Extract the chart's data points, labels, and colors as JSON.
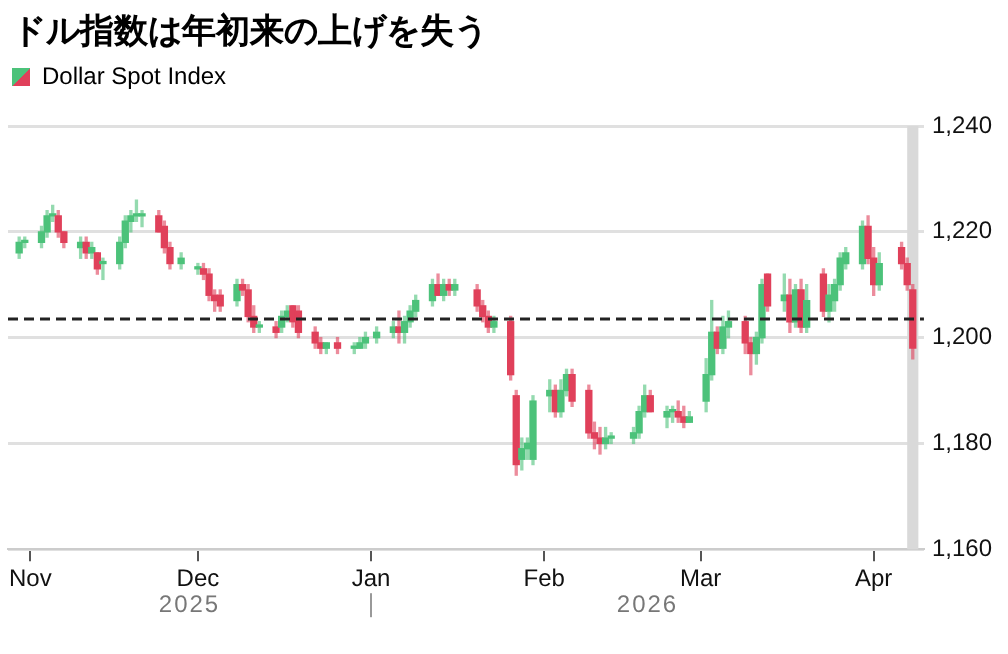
{
  "chart_data": {
    "type": "candlestick",
    "title": "ドル指数は年初来の上げを失う",
    "legend": "top left",
    "x": [
      "2025-10-30",
      "2025-10-31",
      "2025-11-03",
      "2025-11-04",
      "2025-11-05",
      "2025-11-06",
      "2025-11-07",
      "2025-11-10",
      "2025-11-11",
      "2025-11-12",
      "2025-11-13",
      "2025-11-14",
      "2025-11-17",
      "2025-11-18",
      "2025-11-19",
      "2025-11-20",
      "2025-11-21",
      "2025-11-24",
      "2025-11-25",
      "2025-11-26",
      "2025-11-28",
      "2025-12-01",
      "2025-12-02",
      "2025-12-03",
      "2025-12-04",
      "2025-12-05",
      "2025-12-08",
      "2025-12-09",
      "2025-12-10",
      "2025-12-11",
      "2025-12-12",
      "2025-12-15",
      "2025-12-16",
      "2025-12-17",
      "2025-12-18",
      "2025-12-19",
      "2025-12-22",
      "2025-12-23",
      "2025-12-24",
      "2025-12-26",
      "2025-12-29",
      "2025-12-30",
      "2025-12-31",
      "2026-01-02",
      "2026-01-05",
      "2026-01-06",
      "2026-01-07",
      "2026-01-08",
      "2026-01-09",
      "2026-01-12",
      "2026-01-13",
      "2026-01-14",
      "2026-01-15",
      "2026-01-16",
      "2026-01-20",
      "2026-01-21",
      "2026-01-22",
      "2026-01-23",
      "2026-01-26",
      "2026-01-27",
      "2026-01-28",
      "2026-01-29",
      "2026-01-30",
      "2026-02-02",
      "2026-02-03",
      "2026-02-04",
      "2026-02-05",
      "2026-02-06",
      "2026-02-09",
      "2026-02-10",
      "2026-02-11",
      "2026-02-12",
      "2026-02-13",
      "2026-02-17",
      "2026-02-18",
      "2026-02-19",
      "2026-02-20",
      "2026-02-23",
      "2026-02-24",
      "2026-02-25",
      "2026-02-26",
      "2026-02-27",
      "2026-03-02",
      "2026-03-03",
      "2026-03-04",
      "2026-03-05",
      "2026-03-06",
      "2026-03-09",
      "2026-03-10",
      "2026-03-11",
      "2026-03-12",
      "2026-03-13",
      "2026-03-16",
      "2026-03-17",
      "2026-03-18",
      "2026-03-19",
      "2026-03-20",
      "2026-03-23",
      "2026-03-24",
      "2026-03-25",
      "2026-03-26",
      "2026-03-27",
      "2026-03-30",
      "2026-03-31",
      "2026-04-01",
      "2026-04-02",
      "2026-04-06",
      "2026-04-07",
      "2026-04-08"
    ],
    "series": [
      {
        "name": "Dollar Spot Index",
        "ohlc": [
          [
            1216,
            1219,
            1215,
            1218
          ],
          [
            1218,
            1219,
            1217,
            1218
          ],
          [
            1218,
            1221,
            1217,
            1220
          ],
          [
            1220,
            1224,
            1219,
            1223
          ],
          [
            1223,
            1225,
            1222,
            1223
          ],
          [
            1223,
            1224,
            1219,
            1220
          ],
          [
            1220,
            1220,
            1217,
            1218
          ],
          [
            1217,
            1219,
            1215,
            1218
          ],
          [
            1218,
            1219,
            1215,
            1216
          ],
          [
            1216,
            1218,
            1215,
            1217
          ],
          [
            1216,
            1216,
            1212,
            1213
          ],
          [
            1214,
            1215,
            1211,
            1214
          ],
          [
            1214,
            1219,
            1213,
            1218
          ],
          [
            1218,
            1223,
            1217,
            1222
          ],
          [
            1222,
            1224,
            1220,
            1223
          ],
          [
            1223,
            1226,
            1222,
            1223
          ],
          [
            1223,
            1224,
            1221,
            1223
          ],
          [
            1223,
            1224,
            1220,
            1220
          ],
          [
            1221,
            1222,
            1216,
            1217
          ],
          [
            1217,
            1218,
            1213,
            1214
          ],
          [
            1214,
            1216,
            1213,
            1215
          ],
          [
            1213,
            1214,
            1212,
            1213
          ],
          [
            1213,
            1214,
            1211,
            1212
          ],
          [
            1212,
            1213,
            1207,
            1208
          ],
          [
            1208,
            1209,
            1205,
            1207
          ],
          [
            1208,
            1209,
            1205,
            1206
          ],
          [
            1207,
            1211,
            1206,
            1210
          ],
          [
            1210,
            1211,
            1208,
            1209
          ],
          [
            1209,
            1210,
            1203,
            1204
          ],
          [
            1204,
            1206,
            1201,
            1202
          ],
          [
            1202,
            1203,
            1201,
            1202
          ],
          [
            1202,
            1203,
            1200,
            1201
          ],
          [
            1202,
            1205,
            1201,
            1204
          ],
          [
            1204,
            1206,
            1203,
            1205
          ],
          [
            1206,
            1206,
            1202,
            1203
          ],
          [
            1205,
            1206,
            1200,
            1201
          ],
          [
            1201,
            1202,
            1198,
            1199
          ],
          [
            1199,
            1200,
            1197,
            1198
          ],
          [
            1198,
            1199,
            1197,
            1199
          ],
          [
            1199,
            1200,
            1197,
            1198
          ],
          [
            1198,
            1199,
            1197,
            1198
          ],
          [
            1198,
            1200,
            1198,
            1199
          ],
          [
            1199,
            1201,
            1198,
            1200
          ],
          [
            1200,
            1202,
            1199,
            1201
          ],
          [
            1201,
            1203,
            1200,
            1202
          ],
          [
            1202,
            1205,
            1199,
            1201
          ],
          [
            1201,
            1204,
            1199,
            1203
          ],
          [
            1203,
            1206,
            1202,
            1205
          ],
          [
            1205,
            1208,
            1204,
            1207
          ],
          [
            1207,
            1211,
            1206,
            1210
          ],
          [
            1210,
            1212,
            1208,
            1208
          ],
          [
            1208,
            1211,
            1207,
            1210
          ],
          [
            1210,
            1211,
            1208,
            1209
          ],
          [
            1209,
            1211,
            1208,
            1210
          ],
          [
            1209,
            1210,
            1205,
            1206
          ],
          [
            1206,
            1207,
            1203,
            1204
          ],
          [
            1204,
            1205,
            1201,
            1202
          ],
          [
            1202,
            1204,
            1201,
            1203
          ],
          [
            1203,
            1204,
            1192,
            1193
          ],
          [
            1189,
            1190,
            1174,
            1176
          ],
          [
            1177,
            1181,
            1175,
            1179
          ],
          [
            1179,
            1181,
            1177,
            1180
          ],
          [
            1177,
            1189,
            1176,
            1188
          ],
          [
            1189,
            1192,
            1186,
            1190
          ],
          [
            1190,
            1191,
            1185,
            1186
          ],
          [
            1186,
            1192,
            1185,
            1190
          ],
          [
            1190,
            1194,
            1189,
            1193
          ],
          [
            1193,
            1194,
            1187,
            1188
          ],
          [
            1190,
            1191,
            1181,
            1182
          ],
          [
            1182,
            1184,
            1179,
            1181
          ],
          [
            1181,
            1183,
            1178,
            1180
          ],
          [
            1180,
            1183,
            1179,
            1181
          ],
          [
            1181,
            1182,
            1180,
            1181
          ],
          [
            1181,
            1183,
            1180,
            1182
          ],
          [
            1182,
            1187,
            1181,
            1186
          ],
          [
            1186,
            1191,
            1185,
            1189
          ],
          [
            1189,
            1190,
            1186,
            1186
          ],
          [
            1185,
            1187,
            1183,
            1186
          ],
          [
            1186,
            1187,
            1184,
            1186
          ],
          [
            1186,
            1188,
            1184,
            1185
          ],
          [
            1185,
            1187,
            1183,
            1184
          ],
          [
            1184,
            1186,
            1184,
            1185
          ],
          [
            1188,
            1196,
            1186,
            1193
          ],
          [
            1193,
            1207,
            1192,
            1201
          ],
          [
            1201,
            1202,
            1197,
            1198
          ],
          [
            1198,
            1204,
            1197,
            1202
          ],
          [
            1202,
            1205,
            1200,
            1203
          ],
          [
            1203,
            1204,
            1197,
            1199
          ],
          [
            1199,
            1200,
            1193,
            1197
          ],
          [
            1197,
            1201,
            1195,
            1200
          ],
          [
            1200,
            1211,
            1199,
            1210
          ],
          [
            1212,
            1212,
            1205,
            1206
          ],
          [
            1207,
            1212,
            1205,
            1208
          ],
          [
            1208,
            1211,
            1201,
            1203
          ],
          [
            1203,
            1210,
            1202,
            1209
          ],
          [
            1209,
            1211,
            1201,
            1202
          ],
          [
            1202,
            1210,
            1201,
            1207
          ],
          [
            1212,
            1213,
            1204,
            1205
          ],
          [
            1205,
            1210,
            1203,
            1208
          ],
          [
            1207,
            1211,
            1205,
            1210
          ],
          [
            1210,
            1216,
            1209,
            1215
          ],
          [
            1214,
            1217,
            1213,
            1216
          ],
          [
            1214,
            1222,
            1213,
            1221
          ],
          [
            1221,
            1223,
            1214,
            1215
          ],
          [
            1215,
            1217,
            1208,
            1210
          ],
          [
            1210,
            1216,
            1209,
            1214
          ],
          [
            1217,
            1218,
            1213,
            1214
          ],
          [
            1214,
            1215,
            1209,
            1210
          ],
          [
            1209,
            1210,
            1196,
            1198
          ]
        ],
        "colors": [
          "#4cc27a",
          "#4cc27a",
          "#4cc27a",
          "#4cc27a",
          "#4cc27a",
          "#e0405a",
          "#e0405a",
          "#4cc27a",
          "#e0405a",
          "#4cc27a",
          "#e0405a",
          "#4cc27a",
          "#4cc27a",
          "#4cc27a",
          "#4cc27a",
          "#4cc27a",
          "#4cc27a",
          "#e0405a",
          "#e0405a",
          "#e0405a",
          "#4cc27a",
          "#4cc27a",
          "#e0405a",
          "#e0405a",
          "#e0405a",
          "#e0405a",
          "#4cc27a",
          "#e0405a",
          "#e0405a",
          "#e0405a",
          "#4cc27a",
          "#e0405a",
          "#4cc27a",
          "#4cc27a",
          "#e0405a",
          "#e0405a",
          "#e0405a",
          "#e0405a",
          "#4cc27a",
          "#e0405a",
          "#4cc27a",
          "#4cc27a",
          "#4cc27a",
          "#4cc27a",
          "#4cc27a",
          "#e0405a",
          "#4cc27a",
          "#4cc27a",
          "#4cc27a",
          "#4cc27a",
          "#e0405a",
          "#4cc27a",
          "#e0405a",
          "#4cc27a",
          "#e0405a",
          "#e0405a",
          "#e0405a",
          "#4cc27a",
          "#e0405a",
          "#e0405a",
          "#4cc27a",
          "#4cc27a",
          "#4cc27a",
          "#4cc27a",
          "#e0405a",
          "#4cc27a",
          "#4cc27a",
          "#e0405a",
          "#e0405a",
          "#e0405a",
          "#e0405a",
          "#4cc27a",
          "#4cc27a",
          "#4cc27a",
          "#4cc27a",
          "#4cc27a",
          "#e0405a",
          "#4cc27a",
          "#4cc27a",
          "#e0405a",
          "#e0405a",
          "#4cc27a",
          "#4cc27a",
          "#4cc27a",
          "#e0405a",
          "#4cc27a",
          "#4cc27a",
          "#e0405a",
          "#e0405a",
          "#4cc27a",
          "#4cc27a",
          "#e0405a",
          "#4cc27a",
          "#e0405a",
          "#4cc27a",
          "#e0405a",
          "#4cc27a",
          "#e0405a",
          "#4cc27a",
          "#4cc27a",
          "#4cc27a",
          "#4cc27a",
          "#4cc27a",
          "#e0405a",
          "#e0405a",
          "#4cc27a",
          "#e0405a",
          "#e0405a",
          "#e0405a"
        ]
      }
    ],
    "xlim": [
      "2025-10-28",
      "2026-04-10"
    ],
    "xticks": [
      {
        "value": "2025-11-01",
        "label": "Nov"
      },
      {
        "value": "2025-12-01",
        "label": "Dec"
      },
      {
        "value": "2026-01-01",
        "label": "Jan"
      },
      {
        "value": "2026-02-01",
        "label": "Feb"
      },
      {
        "value": "2026-03-01",
        "label": "Mar"
      },
      {
        "value": "2026-04-01",
        "label": "Apr"
      }
    ],
    "ylim": [
      1160,
      1240
    ],
    "yticks": [
      {
        "value": 1160,
        "label": "1,160"
      },
      {
        "value": 1180,
        "label": "1,180"
      },
      {
        "value": 1200,
        "label": "1,200"
      },
      {
        "value": 1220,
        "label": "1,220"
      },
      {
        "value": 1240,
        "label": "1,240"
      }
    ],
    "grid": "y",
    "ref_lines": [
      {
        "axis": "y",
        "value": 1203.5,
        "color": "#222222",
        "line_style": "dashed"
      }
    ],
    "bands": [
      {
        "axis": "x",
        "from": "2026-04-07",
        "to": "2026-04-09",
        "color": "#d9d9d9"
      }
    ],
    "annotations": [
      "2025",
      "2026"
    ]
  }
}
